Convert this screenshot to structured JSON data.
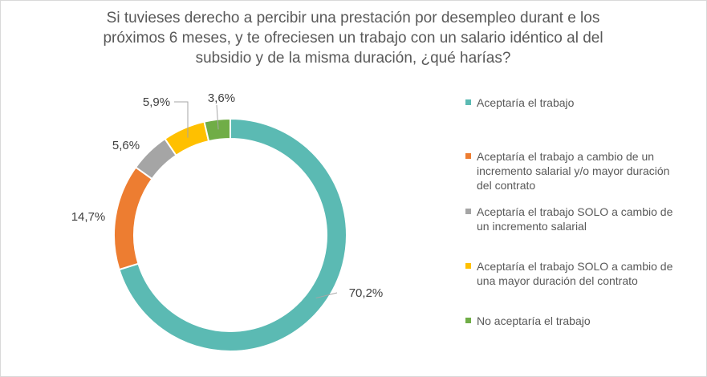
{
  "title_lines": [
    "Si tuvieses derecho a percibir una prestación por desempleo durant e los",
    "próximos 6 meses, y te ofreciesen un trabajo con un salario idéntico al del",
    "subsidio y de la misma duración, ¿qué harías?"
  ],
  "chart_data": {
    "type": "pie",
    "variant": "donut",
    "categories": [
      "Aceptaría el trabajo",
      "Aceptaría el trabajo a cambio de un incremento salarial y/o mayor duración del contrato",
      "Aceptaría el trabajo SOLO a cambio de un incremento salarial",
      "Aceptaría el trabajo SOLO a cambio de una mayor duración del contrato",
      "No aceptaría el trabajo"
    ],
    "values": [
      70.2,
      14.7,
      5.6,
      5.9,
      3.6
    ],
    "data_labels": [
      "70,2%",
      "14,7%",
      "5,6%",
      "5,9%",
      "3,6%"
    ],
    "colors": [
      "#5bbab3",
      "#ed7d31",
      "#a5a5a5",
      "#ffc000",
      "#70ad47"
    ],
    "legend_placement": "right"
  },
  "legend": [
    {
      "lines": [
        "Aceptaría el trabajo"
      ]
    },
    {
      "lines": [
        "Aceptaría el trabajo a cambio de un",
        "incremento salarial y/o mayor duración",
        "del contrato"
      ]
    },
    {
      "lines": [
        "Aceptaría el trabajo SOLO a cambio de",
        "un incremento salarial"
      ]
    },
    {
      "lines": [
        "Aceptaría el trabajo SOLO a cambio de",
        "una mayor duración del contrato"
      ]
    },
    {
      "lines": [
        "No aceptaría el trabajo"
      ]
    }
  ]
}
